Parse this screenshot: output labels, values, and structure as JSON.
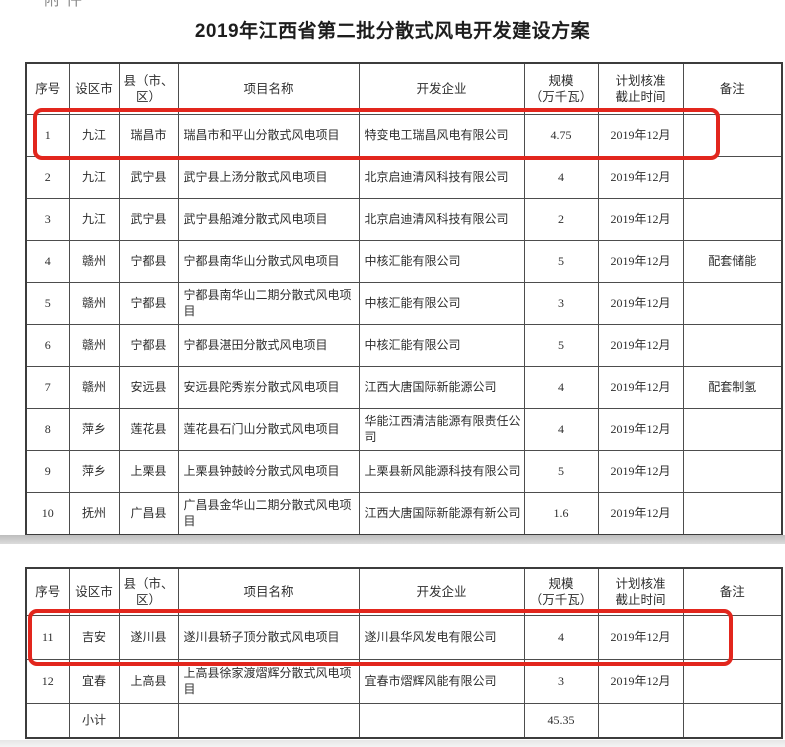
{
  "page": {
    "title": "2019年江西省第二批分散式风电开发建设方案",
    "corner_fragment": "附件"
  },
  "columns": [
    {
      "key": "no",
      "label": "序号"
    },
    {
      "key": "city",
      "label": "设区市"
    },
    {
      "key": "county",
      "label": "县（市、\n区）"
    },
    {
      "key": "project",
      "label": "项目名称"
    },
    {
      "key": "developer",
      "label": "开发企业"
    },
    {
      "key": "capacity",
      "label": "规模\n（万千瓦）"
    },
    {
      "key": "deadline",
      "label": "计划核准\n截止时间"
    },
    {
      "key": "note",
      "label": "备注"
    }
  ],
  "table1": {
    "rows": [
      {
        "no": "1",
        "city": "九江",
        "county": "瑞昌市",
        "project": "瑞昌市和平山分散式风电项目",
        "developer": "特变电工瑞昌风电有限公司",
        "capacity": "4.75",
        "deadline": "2019年12月",
        "note": ""
      },
      {
        "no": "2",
        "city": "九江",
        "county": "武宁县",
        "project": "武宁县上汤分散式风电项目",
        "developer": "北京启迪清风科技有限公司",
        "capacity": "4",
        "deadline": "2019年12月",
        "note": ""
      },
      {
        "no": "3",
        "city": "九江",
        "county": "武宁县",
        "project": "武宁县船滩分散式风电项目",
        "developer": "北京启迪清风科技有限公司",
        "capacity": "2",
        "deadline": "2019年12月",
        "note": ""
      },
      {
        "no": "4",
        "city": "赣州",
        "county": "宁都县",
        "project": "宁都县南华山分散式风电项目",
        "developer": "中核汇能有限公司",
        "capacity": "5",
        "deadline": "2019年12月",
        "note": "配套储能"
      },
      {
        "no": "5",
        "city": "赣州",
        "county": "宁都县",
        "project": "宁都县南华山二期分散式风电项目",
        "developer": "中核汇能有限公司",
        "capacity": "3",
        "deadline": "2019年12月",
        "note": ""
      },
      {
        "no": "6",
        "city": "赣州",
        "county": "宁都县",
        "project": "宁都县湛田分散式风电项目",
        "developer": "中核汇能有限公司",
        "capacity": "5",
        "deadline": "2019年12月",
        "note": ""
      },
      {
        "no": "7",
        "city": "赣州",
        "county": "安远县",
        "project": "安远县陀秀岽分散式风电项目",
        "developer": "江西大唐国际新能源公司",
        "capacity": "4",
        "deadline": "2019年12月",
        "note": "配套制氢"
      },
      {
        "no": "8",
        "city": "萍乡",
        "county": "莲花县",
        "project": "莲花县石门山分散式风电项目",
        "developer": "华能江西清洁能源有限责任公司",
        "capacity": "4",
        "deadline": "2019年12月",
        "note": ""
      },
      {
        "no": "9",
        "city": "萍乡",
        "county": "上栗县",
        "project": "上栗县钟鼓岭分散式风电项目",
        "developer": "上栗县新风能源科技有限公司",
        "capacity": "5",
        "deadline": "2019年12月",
        "note": ""
      },
      {
        "no": "10",
        "city": "抚州",
        "county": "广昌县",
        "project": "广昌县金华山二期分散式风电项目",
        "developer": "江西大唐国际新能源有新公司",
        "capacity": "1.6",
        "deadline": "2019年12月",
        "note": ""
      }
    ]
  },
  "table2": {
    "rows": [
      {
        "no": "11",
        "city": "吉安",
        "county": "遂川县",
        "project": "遂川县轿子顶分散式风电项目",
        "developer": "遂川县华风发电有限公司",
        "capacity": "4",
        "deadline": "2019年12月",
        "note": ""
      },
      {
        "no": "12",
        "city": "宜春",
        "county": "上高县",
        "project": "上高县徐家渡熠辉分散式风电项目",
        "developer": "宜春市熠辉风能有限公司",
        "capacity": "3",
        "deadline": "2019年12月",
        "note": ""
      },
      {
        "no": "",
        "city": "小计",
        "county": "",
        "project": "",
        "developer": "",
        "capacity": "45.35",
        "deadline": "",
        "note": ""
      }
    ]
  },
  "highlight": {
    "color": "#e2261d",
    "row_numbers": [
      "1",
      "11"
    ]
  }
}
